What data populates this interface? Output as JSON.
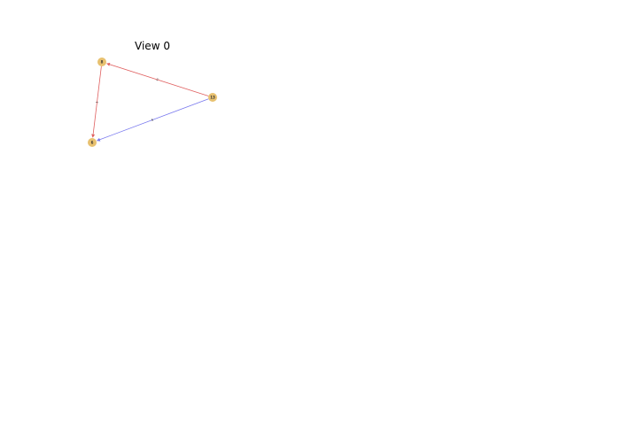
{
  "view": {
    "title": "View 0"
  },
  "graph": {
    "nodes": [
      {
        "id": "8",
        "label": "8",
        "color": "#e8c170"
      },
      {
        "id": "13",
        "label": "13",
        "color": "#e8c170"
      },
      {
        "id": "6",
        "label": "6",
        "color": "#e8c170"
      }
    ],
    "edges": [
      {
        "id": "e-8-13",
        "source": "13",
        "target": "8",
        "label": "2",
        "color": "#e06060"
      },
      {
        "id": "e-8-6",
        "source": "8",
        "target": "6",
        "label": "1",
        "color": "#e06060"
      },
      {
        "id": "e-13-6",
        "source": "13",
        "target": "6",
        "label": "6",
        "color": "#7777ee"
      }
    ]
  }
}
